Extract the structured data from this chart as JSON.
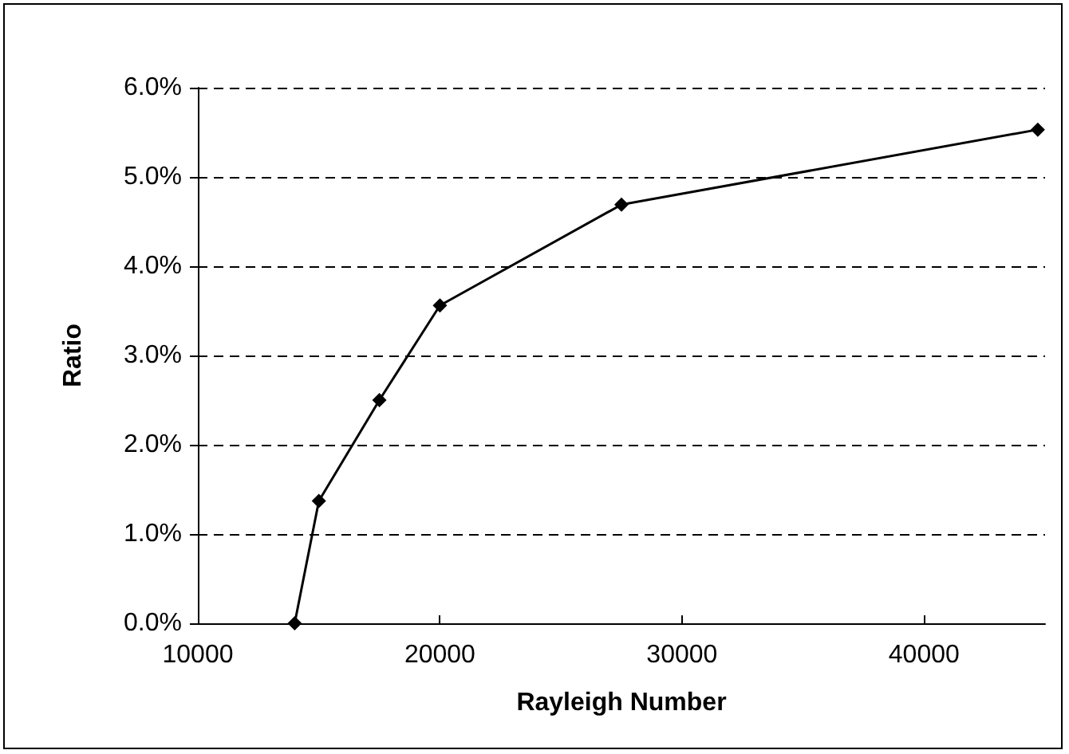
{
  "chart_data": {
    "type": "line",
    "xlabel": "Rayleigh Number",
    "ylabel": "Ratio",
    "x": [
      14000,
      15000,
      17500,
      20000,
      27500,
      44700
    ],
    "series": [
      {
        "color": "#000000",
        "values": [
          0,
          1.37,
          2.5,
          3.56,
          4.69,
          5.53
        ]
      }
    ],
    "xlim": [
      10000,
      45000
    ],
    "xticks": [
      10000,
      20000,
      30000,
      40000
    ],
    "ylim": [
      0,
      6
    ],
    "yticks": [
      {
        "value": 0,
        "label": "0.0%"
      },
      {
        "value": 1,
        "label": "1.0%"
      },
      {
        "value": 2,
        "label": "2.0%"
      },
      {
        "value": 3,
        "label": "3.0%"
      },
      {
        "value": 4,
        "label": "4.0%"
      },
      {
        "value": 5,
        "label": "5.0%"
      },
      {
        "value": 6,
        "label": "6.0%"
      }
    ],
    "grid": "y",
    "marker": "diamond",
    "line_style": "solid"
  }
}
